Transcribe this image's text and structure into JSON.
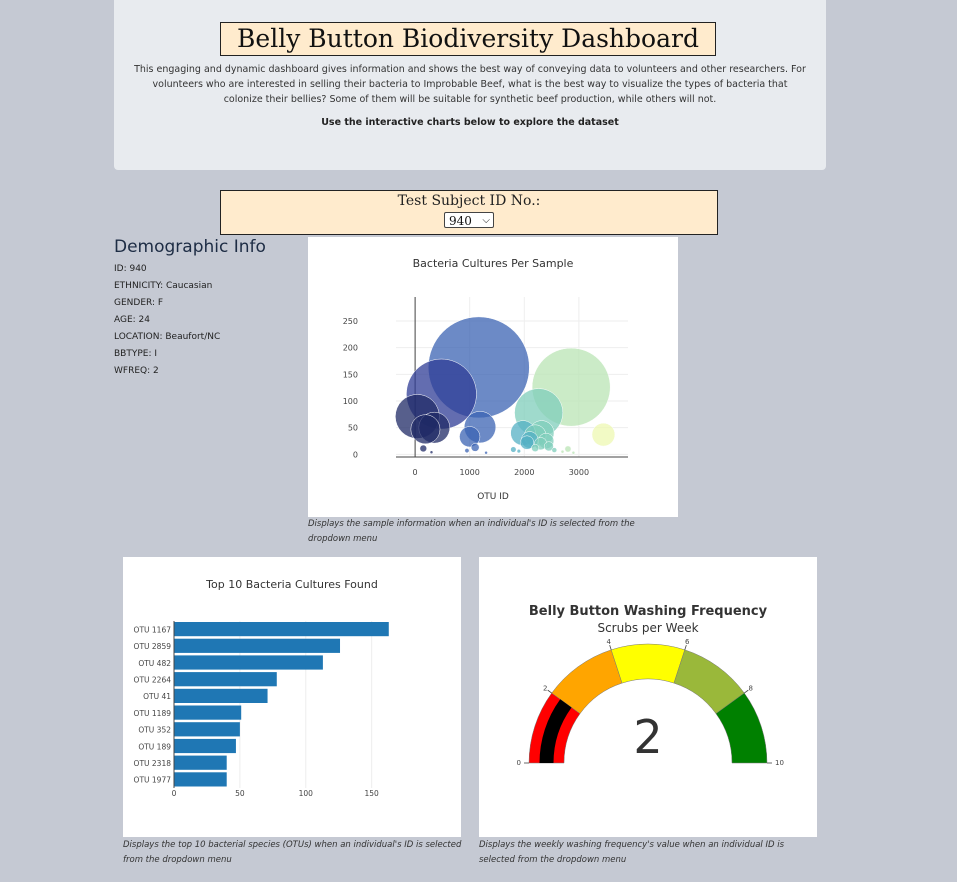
{
  "header": {
    "title": "Belly Button Biodiversity Dashboard",
    "description": "This engaging and dynamic dashboard gives information and shows the best way of conveying data to volunteers and other researchers. For volunteers who are interested in selling their bacteria to Improbable Beef, what is the best way to visualize the types of bacteria that colonize their bellies? Some of them will be suitable for synthetic beef production, while others will not.",
    "explore_text": "Use the interactive charts below to explore the dataset"
  },
  "selector": {
    "label": "Test Subject ID No.:",
    "value": "940"
  },
  "demographic": {
    "heading": "Demographic Info",
    "rows": [
      "ID: 940",
      "ETHNICITY: Caucasian",
      "GENDER: F",
      "AGE: 24",
      "LOCATION: Beaufort/NC",
      "BBTYPE: I",
      "WFREQ: 2"
    ]
  },
  "captions": {
    "bubble": "Displays the sample information when an individual's ID is selected from the dropdown menu",
    "bar": "Displays the top 10 bacterial species (OTUs) when an individual's ID is selected from the dropdown menu",
    "gauge": "Displays the weekly washing frequency's value when an individual ID is selected from the dropdown menu"
  },
  "chart_data": [
    {
      "type": "scatter",
      "title": "Bacteria Cultures Per Sample",
      "xlabel": "OTU ID",
      "ylabel": "",
      "xlim": [
        -350,
        3900
      ],
      "ylim": [
        -5,
        295
      ],
      "xticks": [
        0,
        1000,
        2000,
        3000
      ],
      "yticks": [
        0,
        50,
        100,
        150,
        200,
        250
      ],
      "colorscale": [
        "#1f2a66",
        "#2f3c96",
        "#3b63b3",
        "#3c8fc8",
        "#54b0c4",
        "#7fcdbb",
        "#b9e4b4",
        "#edf8b1"
      ],
      "points": [
        {
          "x": 1167,
          "y": 163
        },
        {
          "x": 2859,
          "y": 126
        },
        {
          "x": 482,
          "y": 113
        },
        {
          "x": 2264,
          "y": 78
        },
        {
          "x": 41,
          "y": 71
        },
        {
          "x": 1189,
          "y": 51
        },
        {
          "x": 352,
          "y": 50
        },
        {
          "x": 189,
          "y": 47
        },
        {
          "x": 2318,
          "y": 40
        },
        {
          "x": 1977,
          "y": 40
        },
        {
          "x": 3450,
          "y": 37
        },
        {
          "x": 2200,
          "y": 35
        },
        {
          "x": 1000,
          "y": 33
        },
        {
          "x": 2100,
          "y": 27
        },
        {
          "x": 2400,
          "y": 25
        },
        {
          "x": 2050,
          "y": 22
        },
        {
          "x": 2300,
          "y": 20
        },
        {
          "x": 2450,
          "y": 15
        },
        {
          "x": 1100,
          "y": 13
        },
        {
          "x": 2200,
          "y": 12
        },
        {
          "x": 2800,
          "y": 10
        },
        {
          "x": 150,
          "y": 11
        },
        {
          "x": 1800,
          "y": 9
        },
        {
          "x": 2550,
          "y": 8
        },
        {
          "x": 950,
          "y": 7
        },
        {
          "x": 1900,
          "y": 6
        },
        {
          "x": 2700,
          "y": 5
        },
        {
          "x": 300,
          "y": 4
        },
        {
          "x": 1300,
          "y": 3
        },
        {
          "x": 2900,
          "y": 3
        }
      ]
    },
    {
      "type": "bar",
      "orientation": "horizontal",
      "title": "Top 10 Bacteria Cultures Found",
      "categories": [
        "OTU 1167",
        "OTU 2859",
        "OTU 482",
        "OTU 2264",
        "OTU 41",
        "OTU 1189",
        "OTU 352",
        "OTU 189",
        "OTU 2318",
        "OTU 1977"
      ],
      "values": [
        163,
        126,
        113,
        78,
        71,
        51,
        50,
        47,
        40,
        40
      ],
      "xlim": [
        0,
        170
      ],
      "xticks": [
        0,
        50,
        100,
        150
      ],
      "color": "#1f77b4"
    },
    {
      "type": "gauge",
      "title": "Belly Button Washing Frequency",
      "subtitle": "Scrubs per Week",
      "value": 2,
      "range": [
        0,
        10
      ],
      "ticks": [
        0,
        2,
        4,
        6,
        8,
        10
      ],
      "steps": [
        {
          "range": [
            0,
            2
          ],
          "color": "#ff0000"
        },
        {
          "range": [
            2,
            4
          ],
          "color": "#ffa500"
        },
        {
          "range": [
            4,
            6
          ],
          "color": "#ffff00"
        },
        {
          "range": [
            6,
            8
          ],
          "color": "#9ab83a"
        },
        {
          "range": [
            8,
            10
          ],
          "color": "#008000"
        }
      ],
      "bar_color": "#000000"
    }
  ]
}
